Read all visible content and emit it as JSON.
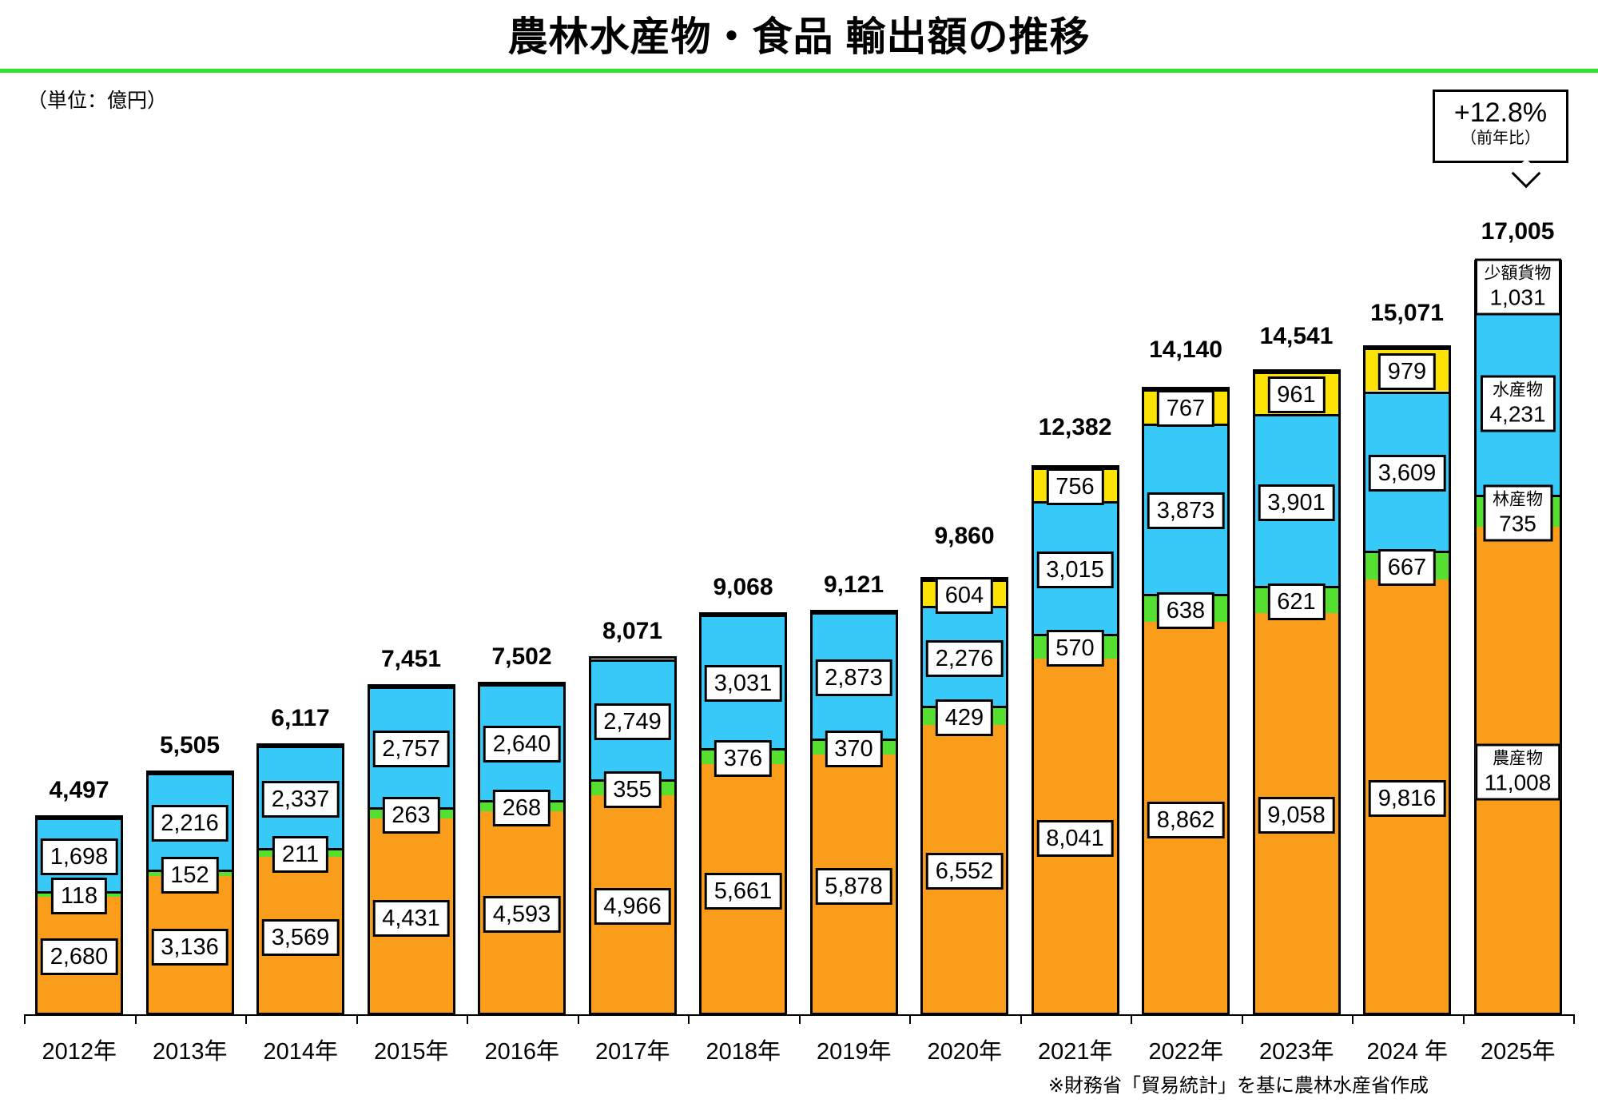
{
  "page": {
    "title": "農林水産物・食品 輸出額の推移",
    "unit_label": "（単位：億円）",
    "source_note": "※財務省「貿易統計」を基に農林水産省作成"
  },
  "callout": {
    "percent": "+12.8%",
    "note": "（前年比）",
    "points_to_total": "17,005"
  },
  "chart_data": {
    "type": "bar",
    "subtype": "stacked",
    "title": "農林水産物・食品 輸出額の推移",
    "unit": "億円",
    "grid": false,
    "legend_position": "labels-inside-last-bar",
    "categories": [
      "2012年",
      "2013年",
      "2014年",
      "2015年",
      "2016年",
      "2017年",
      "2018年",
      "2019年",
      "2020年",
      "2021年",
      "2022年",
      "2023年",
      "2024 年",
      "2025年"
    ],
    "series": [
      {
        "key": "agri",
        "name": "農産物",
        "color": "#F99D1A",
        "values": [
          2680,
          3136,
          3569,
          4431,
          4593,
          4966,
          5661,
          5878,
          6552,
          8041,
          8862,
          9058,
          9816,
          11008
        ],
        "values_text": [
          "2,680",
          "3,136",
          "3,569",
          "4,431",
          "4,593",
          "4,966",
          "5,661",
          "5,878",
          "6,552",
          "8,041",
          "8,862",
          "9,058",
          "9,816",
          "11,008"
        ]
      },
      {
        "key": "forest",
        "name": "林産物",
        "color": "#55E031",
        "values": [
          118,
          152,
          211,
          263,
          268,
          355,
          376,
          370,
          429,
          570,
          638,
          621,
          667,
          735
        ],
        "values_text": [
          "118",
          "152",
          "211",
          "263",
          "268",
          "355",
          "376",
          "370",
          "429",
          "570",
          "638",
          "621",
          "667",
          "735"
        ]
      },
      {
        "key": "fish",
        "name": "水産物",
        "color": "#37C9F7",
        "values": [
          1698,
          2216,
          2337,
          2757,
          2640,
          2749,
          3031,
          2873,
          2276,
          3015,
          3873,
          3901,
          3609,
          4231
        ],
        "values_text": [
          "1,698",
          "2,216",
          "2,337",
          "2,757",
          "2,640",
          "2,749",
          "3,031",
          "2,873",
          "2,276",
          "3,015",
          "3,873",
          "3,901",
          "3,609",
          "4,231"
        ]
      },
      {
        "key": "small",
        "name": "少額貨物",
        "color": "#FCE303",
        "values": [
          null,
          null,
          null,
          null,
          null,
          null,
          null,
          null,
          604,
          756,
          767,
          961,
          979,
          1031
        ],
        "values_text": [
          "",
          "",
          "",
          "",
          "",
          "",
          "",
          "",
          "604",
          "756",
          "767",
          "961",
          "979",
          "1,031"
        ]
      }
    ],
    "totals": [
      4497,
      5505,
      6117,
      7451,
      7502,
      8071,
      9068,
      9121,
      9860,
      12382,
      14140,
      14541,
      15071,
      17005
    ],
    "totals_text": [
      "4,497",
      "5,505",
      "6,117",
      "7,451",
      "7,502",
      "8,071",
      "9,068",
      "9,121",
      "9,860",
      "12,382",
      "14,140",
      "14,541",
      "15,071",
      "17,005"
    ],
    "named_labels_category_index": 13,
    "yoy_annotation": {
      "percent": "+12.8%",
      "note": "（前年比）"
    },
    "ylim": [
      0,
      17005
    ],
    "axis_color": "#000000",
    "title_underline_color": "#2BE52B"
  }
}
